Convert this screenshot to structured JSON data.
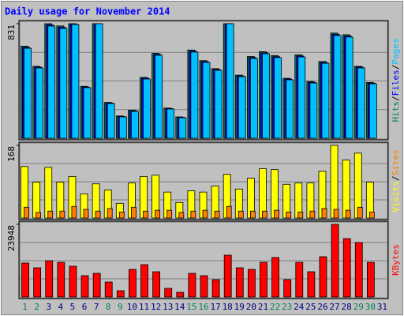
{
  "title": "Daily usage for November 2014",
  "chart_data": [
    {
      "type": "bar",
      "ylim": [
        0,
        831
      ],
      "yticks": [
        831
      ],
      "legend_separator": "/",
      "series": [
        {
          "name": "Hits",
          "color": "#00805c",
          "values": [
            668,
            522,
            831,
            815,
            831,
            377,
            831,
            260,
            162,
            203,
            441,
            616,
            219,
            155,
            640,
            563,
            505,
            831,
            458,
            593,
            628,
            600,
            435,
            605,
            412,
            557,
            763,
            751,
            522,
            405,
            null
          ]
        },
        {
          "name": "Files",
          "color": "#0000ff",
          "values": [
            660,
            516,
            822,
            806,
            829,
            372,
            831,
            256,
            158,
            199,
            436,
            609,
            216,
            152,
            632,
            557,
            499,
            831,
            452,
            586,
            620,
            592,
            430,
            597,
            406,
            550,
            754,
            742,
            516,
            400,
            null
          ]
        },
        {
          "name": "Pages",
          "color": "#00c0ff",
          "values": [
            653,
            510,
            814,
            797,
            825,
            367,
            831,
            252,
            155,
            195,
            430,
            602,
            212,
            149,
            625,
            550,
            493,
            831,
            447,
            579,
            613,
            585,
            424,
            590,
            401,
            544,
            745,
            734,
            510,
            395,
            null
          ]
        }
      ]
    },
    {
      "type": "bar",
      "ylim": [
        0,
        168
      ],
      "yticks": [
        168
      ],
      "legend_separator": "/",
      "series": [
        {
          "name": "Visits",
          "color": "#ffff00",
          "values": [
            119,
            83,
            117,
            83,
            96,
            56,
            79,
            65,
            34,
            81,
            96,
            99,
            60,
            36,
            63,
            60,
            74,
            101,
            67,
            92,
            114,
            112,
            78,
            81,
            81,
            108,
            168,
            134,
            150,
            83,
            null
          ]
        },
        {
          "name": "Sites",
          "color": "#ff8000",
          "values": [
            25,
            13,
            16,
            16,
            27,
            20,
            16,
            22,
            14,
            25,
            16,
            18,
            18,
            13,
            16,
            18,
            16,
            27,
            16,
            16,
            16,
            18,
            14,
            14,
            16,
            22,
            20,
            18,
            25,
            14,
            null
          ]
        }
      ]
    },
    {
      "type": "bar",
      "ylim": [
        0,
        23948
      ],
      "yticks": [
        23948
      ],
      "categories": [
        "1",
        "2",
        "3",
        "4",
        "5",
        "6",
        "7",
        "8",
        "9",
        "10",
        "11",
        "12",
        "13",
        "14",
        "15",
        "16",
        "17",
        "18",
        "19",
        "20",
        "21",
        "22",
        "23",
        "24",
        "25",
        "26",
        "27",
        "28",
        "29",
        "30",
        "31"
      ],
      "label_colors": [
        "#00805c",
        "#00805c",
        "#000080",
        "#000080",
        "#000080",
        "#000080",
        "#000080",
        "#00805c",
        "#00805c",
        "#000080",
        "#000080",
        "#000080",
        "#000080",
        "#000080",
        "#00805c",
        "#00805c",
        "#000080",
        "#000080",
        "#000080",
        "#000080",
        "#000080",
        "#00805c",
        "#00805c",
        "#000080",
        "#000080",
        "#000080",
        "#000080",
        "#000080",
        "#00805c",
        "#00805c",
        "#000080"
      ],
      "series": [
        {
          "name": "KBytes",
          "color": "#ff0000",
          "values": [
            11193,
            9631,
            11974,
            11453,
            10152,
            7028,
            7809,
            4946,
            2082,
            9111,
            10672,
            8330,
            2863,
            1562,
            7809,
            7028,
            5727,
            13797,
            9631,
            9111,
            11453,
            13015,
            5727,
            11453,
            8330,
            13276,
            23948,
            19263,
            17962,
            11453,
            null
          ]
        }
      ]
    }
  ]
}
